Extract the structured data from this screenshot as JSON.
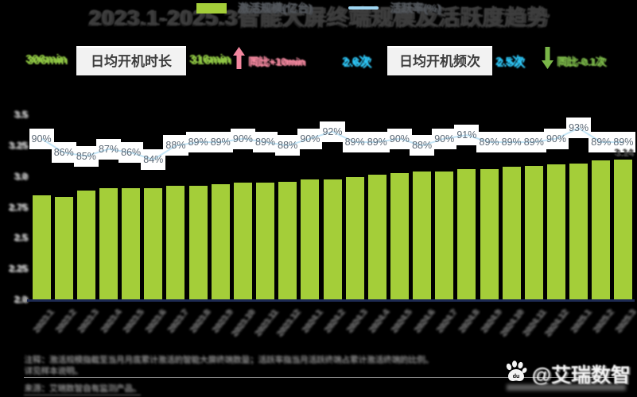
{
  "title": "2023.1-2025.3智能大屏终端规模及活跃度趋势",
  "stats": {
    "duration": {
      "value_prev": "306min",
      "label": "日均开机时长",
      "value_now": "316min",
      "change": "同比+10min",
      "value_color": "#8dc63f",
      "change_color": "#f2879e",
      "trend": "up"
    },
    "frequency": {
      "value_prev": "2.6次",
      "label": "日均开机频次",
      "value_now": "2.5次",
      "change": "同比-0.1次",
      "value_color": "#29c4f5",
      "change_color": "#7ab648",
      "trend": "down"
    }
  },
  "legend": {
    "bar_label": "激活规模(亿台)",
    "line_label": "活跃率(%)"
  },
  "chart_data": {
    "type": "bar",
    "title": "2023.1-2025.3智能大屏终端规模及活跃度趋势",
    "categories": [
      "2023.1",
      "2023.2",
      "2023.3",
      "2023.4",
      "2023.5",
      "2023.6",
      "2023.7",
      "2023.8",
      "2023.9",
      "2023.10",
      "2023.11",
      "2023.12",
      "2024.1",
      "2024.2",
      "2024.3",
      "2024.4",
      "2024.5",
      "2024.6",
      "2024.7",
      "2024.8",
      "2024.9",
      "2024.10",
      "2024.11",
      "2024.12",
      "2025.1",
      "2025.2",
      "2025.3"
    ],
    "series": [
      {
        "name": "激活规模(亿台)",
        "type": "bar",
        "values": [
          2.85,
          2.84,
          2.89,
          2.91,
          2.91,
          2.91,
          2.93,
          2.93,
          2.94,
          2.95,
          2.95,
          2.96,
          2.98,
          2.98,
          3.0,
          3.02,
          3.03,
          3.04,
          3.04,
          3.06,
          3.06,
          3.08,
          3.09,
          3.1,
          3.11,
          3.13,
          3.14
        ]
      },
      {
        "name": "活跃率(%)",
        "type": "line",
        "values": [
          90,
          86,
          85,
          87,
          86,
          84,
          88,
          89,
          89,
          90,
          89,
          88,
          90,
          92,
          89,
          89,
          90,
          88,
          90,
          91,
          89,
          89,
          89,
          90,
          93,
          89,
          89
        ]
      }
    ],
    "last_bar_label": "3.14",
    "y_ticks": [
      "3.5",
      "3.25",
      "3.0",
      "2.75",
      "2.5",
      "2.25",
      "2.0"
    ],
    "ylim": [
      2.0,
      3.5
    ],
    "rate_lim": [
      84,
      93
    ],
    "bar_color": "#a4ce39",
    "line_color": "#9fd6f2",
    "legend_position": "top"
  },
  "footer": {
    "note1": "注释：激活规模指截至当月月底累计激活的智能大屏终端数量；活跃率指当月活跃终端占累计激活终端的比例。",
    "note2": "详见样本说明。",
    "source": "来源：艾瑞数智自有监测产品。"
  },
  "watermark": {
    "handle": "@艾瑞数智",
    "icon": "baidu-paw-icon"
  }
}
